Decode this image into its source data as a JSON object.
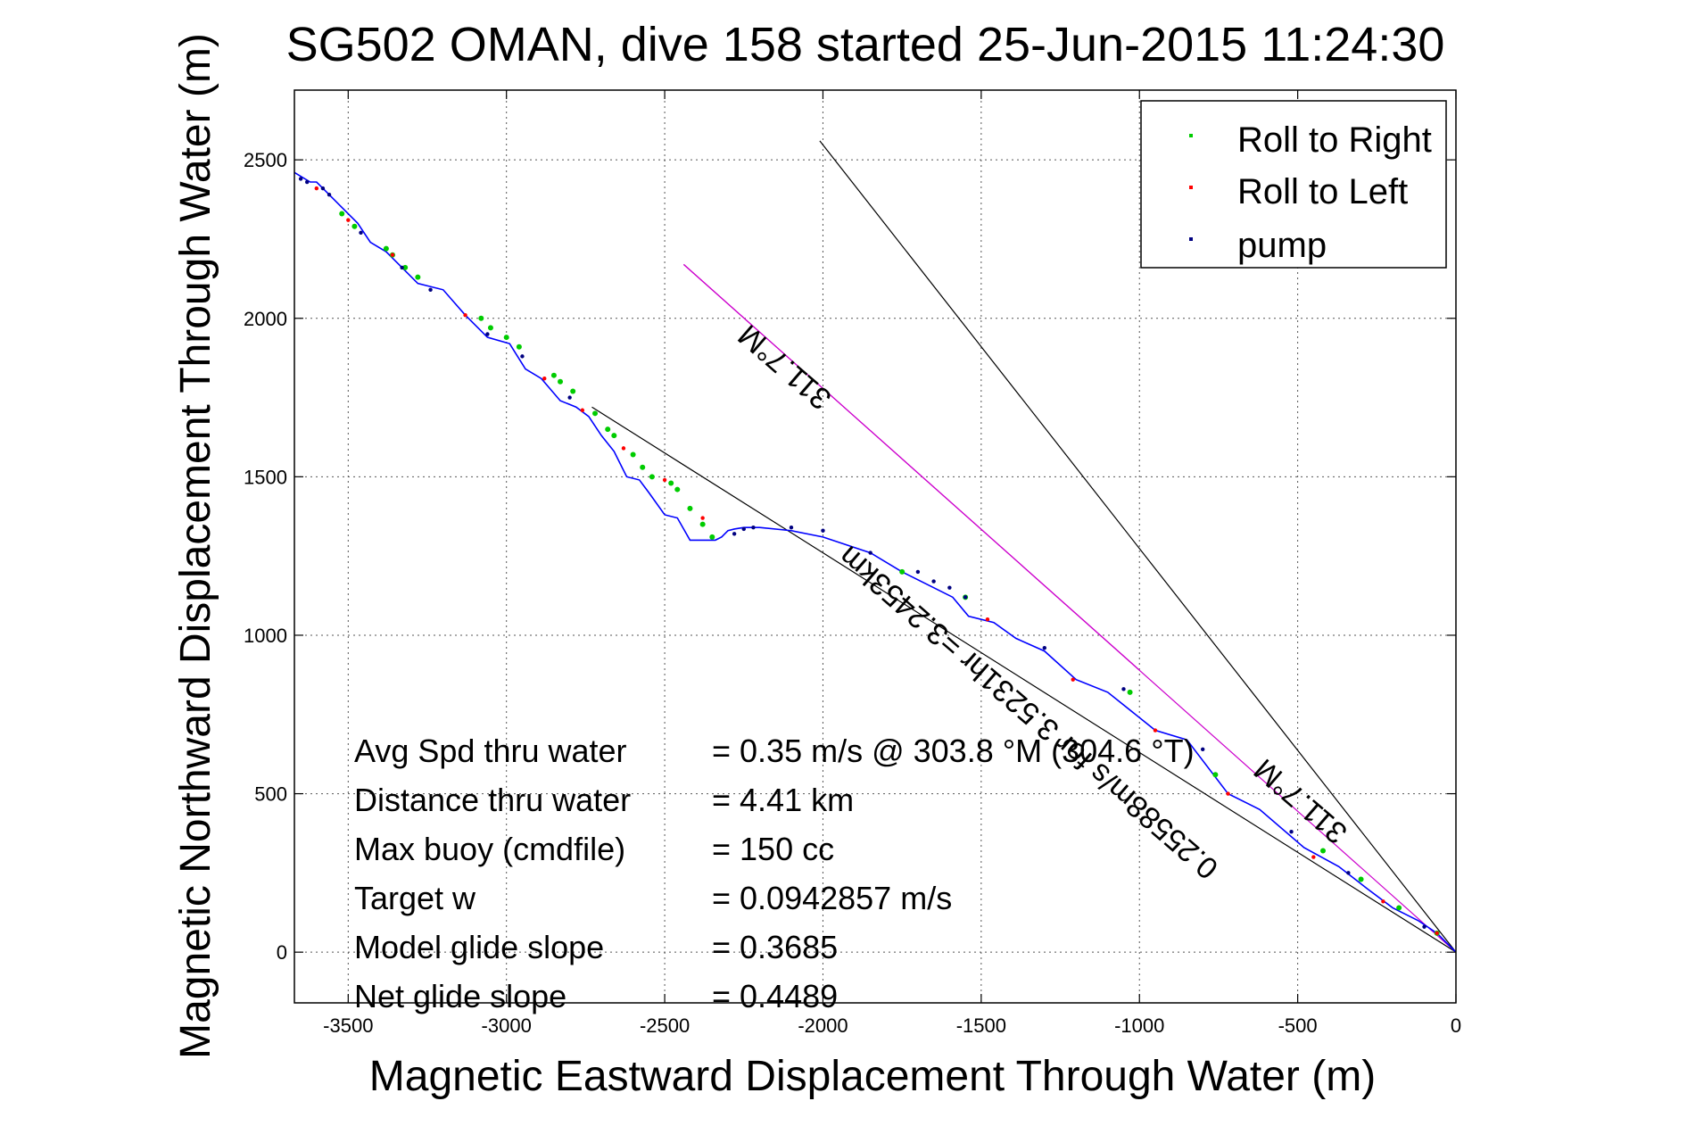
{
  "chart_data": {
    "type": "line",
    "title": "SG502 OMAN, dive 158 started 25-Jun-2015 11:24:30",
    "xlabel": "Magnetic Eastward Displacement Through Water (m)",
    "ylabel": "Magnetic Northward Displacement Through Water (m)",
    "xlim": [
      -3670,
      0
    ],
    "ylim": [
      -160,
      2720
    ],
    "xticks": [
      -3500,
      -3000,
      -2500,
      -2000,
      -1500,
      -1000,
      -500,
      0
    ],
    "yticks": [
      0,
      500,
      1000,
      1500,
      2000,
      2500
    ],
    "xtick_labels": [
      "-3500",
      "-3000",
      "-2500",
      "-2000",
      "-1500",
      "-1000",
      "-500",
      "0"
    ],
    "ytick_labels": [
      "0",
      "500",
      "1000",
      "1500",
      "2000",
      "2500"
    ],
    "grid": true,
    "legend_position": "top-right",
    "legend": [
      {
        "label": "Roll to Right",
        "color": "#00cc00"
      },
      {
        "label": "Roll to Left",
        "color": "#ff0000"
      },
      {
        "label": "pump",
        "color": "#000080"
      }
    ],
    "series": [
      {
        "role": "track",
        "color": "#0000ff",
        "x": [
          -3670,
          -3620,
          -3600,
          -3580,
          -3500,
          -3470,
          -3430,
          -3380,
          -3320,
          -3280,
          -3200,
          -3130,
          -3060,
          -2990,
          -2940,
          -2890,
          -2830,
          -2780,
          -2740,
          -2700,
          -2660,
          -2620,
          -2580,
          -2550,
          -2500,
          -2460,
          -2420,
          -2380,
          -2340,
          -2320,
          -2300,
          -2280,
          -2250,
          -2200,
          -2100,
          -2000,
          -1850,
          -1750,
          -1650,
          -1590,
          -1540,
          -1460,
          -1390,
          -1300,
          -1200,
          -1100,
          -950,
          -850,
          -720,
          -620,
          -480,
          -370,
          -280,
          -200,
          -120,
          -60,
          0
        ],
        "y": [
          2460,
          2430,
          2430,
          2410,
          2330,
          2300,
          2240,
          2210,
          2150,
          2110,
          2090,
          2010,
          1940,
          1920,
          1840,
          1810,
          1740,
          1720,
          1690,
          1630,
          1580,
          1500,
          1490,
          1450,
          1380,
          1370,
          1300,
          1300,
          1300,
          1310,
          1330,
          1335,
          1340,
          1340,
          1330,
          1310,
          1260,
          1200,
          1150,
          1120,
          1060,
          1040,
          990,
          950,
          860,
          820,
          700,
          670,
          500,
          450,
          330,
          270,
          200,
          140,
          100,
          60,
          0
        ]
      },
      {
        "role": "rolls-right",
        "color": "#00cc00",
        "x": [
          -3520,
          -3480,
          -3380,
          -3360,
          -3320,
          -3280,
          -3080,
          -3050,
          -3000,
          -2960,
          -2850,
          -2830,
          -2790,
          -2720,
          -2680,
          -2660,
          -2600,
          -2570,
          -2540,
          -2480,
          -2460,
          -2420,
          -2380,
          -2350,
          -1750,
          -1550,
          -1030,
          -760,
          -420,
          -300,
          -180,
          -60
        ],
        "y": [
          2330,
          2290,
          2220,
          2200,
          2160,
          2130,
          2000,
          1970,
          1940,
          1910,
          1820,
          1800,
          1770,
          1700,
          1650,
          1630,
          1570,
          1530,
          1500,
          1480,
          1460,
          1400,
          1350,
          1310,
          1200,
          1120,
          820,
          560,
          320,
          230,
          140,
          60
        ]
      },
      {
        "role": "rolls-left",
        "color": "#ff0000",
        "x": [
          -3600,
          -3500,
          -3360,
          -3130,
          -2880,
          -2760,
          -2630,
          -2500,
          -2380,
          -1480,
          -1210,
          -950,
          -720,
          -450,
          -230,
          -60
        ],
        "y": [
          2410,
          2310,
          2200,
          2010,
          1810,
          1710,
          1590,
          1490,
          1370,
          1050,
          860,
          700,
          500,
          300,
          160,
          60
        ]
      },
      {
        "role": "pump",
        "color": "#000080",
        "x": [
          -3650,
          -3630,
          -3580,
          -3560,
          -3460,
          -3330,
          -3240,
          -3060,
          -2950,
          -2800,
          -2280,
          -2250,
          -2220,
          -2100,
          -2000,
          -1850,
          -1700,
          -1650,
          -1600,
          -1550,
          -1300,
          -1050,
          -800,
          -520,
          -340,
          -100
        ],
        "y": [
          2440,
          2430,
          2410,
          2390,
          2270,
          2160,
          2090,
          1950,
          1880,
          1750,
          1320,
          1335,
          1340,
          1340,
          1330,
          1260,
          1200,
          1170,
          1150,
          1120,
          960,
          830,
          640,
          380,
          250,
          80
        ]
      }
    ],
    "reference_lines": [
      {
        "color": "#000000",
        "x": [
          0,
          -2010
        ],
        "y": [
          0,
          2560
        ]
      },
      {
        "color": "#000000",
        "x": [
          0,
          -2730
        ],
        "y": [
          0,
          1720
        ]
      },
      {
        "color": "#cc00cc",
        "x": [
          0,
          -2440
        ],
        "y": [
          0,
          2170
        ]
      },
      {
        "color": "#cc00cc",
        "x": [
          -1000,
          -2440
        ],
        "y": [
          890,
          2170
        ]
      }
    ],
    "bearing_labels": [
      {
        "text": "311.7°M",
        "x": -2100,
        "y": 1870,
        "angle": 40.9
      },
      {
        "text": "0.25588m/s for 3.5231hr =3.2453km",
        "x": -1330,
        "y": 780,
        "angle": 40.9
      },
      {
        "text": "311.7°M",
        "x": -470,
        "y": 500,
        "angle": 40.9
      }
    ],
    "annotations": [
      {
        "label": "Avg Spd thru water",
        "value": "=  0.35 m/s @ 303.8 °M (304.6 °T)"
      },
      {
        "label": "Distance thru water",
        "value": "=  4.41 km"
      },
      {
        "label": "Max buoy (cmdfile)",
        "value": "= 150 cc"
      },
      {
        "label": "Target w",
        "value": "= 0.0942857 m/s"
      },
      {
        "label": "Model glide slope",
        "value": "= 0.3685"
      },
      {
        "label": "Net glide slope",
        "value": "= 0.4489"
      }
    ]
  }
}
